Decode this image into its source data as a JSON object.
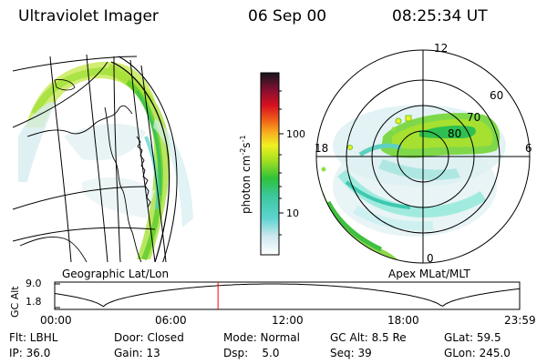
{
  "header": {
    "instrument": "Ultraviolet Imager",
    "date": "06 Sep 00",
    "time": "08:25:34 UT"
  },
  "panels": {
    "left_label": "Geographic Lat/Lon",
    "right_label": "Apex MLat/MLT"
  },
  "colorbar": {
    "unit_label": "photon cm",
    "unit_exp": "-2",
    "unit_s": "s",
    "unit_s_exp": "-1",
    "ticks": [
      "100",
      "10"
    ]
  },
  "polar": {
    "mlt_labels": [
      "12",
      "18",
      "6",
      "0"
    ],
    "mlat_labels": [
      "60",
      "70",
      "80"
    ]
  },
  "altitude_plot": {
    "axis_label": "GC Alt",
    "y_ticks": [
      "9.0",
      "1.8"
    ],
    "x_ticks": [
      "00:00",
      "06:00",
      "12:00",
      "18:00",
      "23:59"
    ],
    "current_time_hours": 8.43,
    "curve_color": "#000000",
    "marker_color": "#ff0000"
  },
  "info": {
    "flt": "Flt: LBHL",
    "door": "Door: Closed",
    "mode": "Mode: Normal",
    "gc_alt": "GC Alt: 8.5 Re",
    "glat": "GLat:  59.5",
    "ip": "IP: 36.0",
    "gain": "Gain: 13",
    "dsp": "Dsp:    5.0",
    "seq": "Seq: 39",
    "glon": "GLon: 245.0"
  }
}
